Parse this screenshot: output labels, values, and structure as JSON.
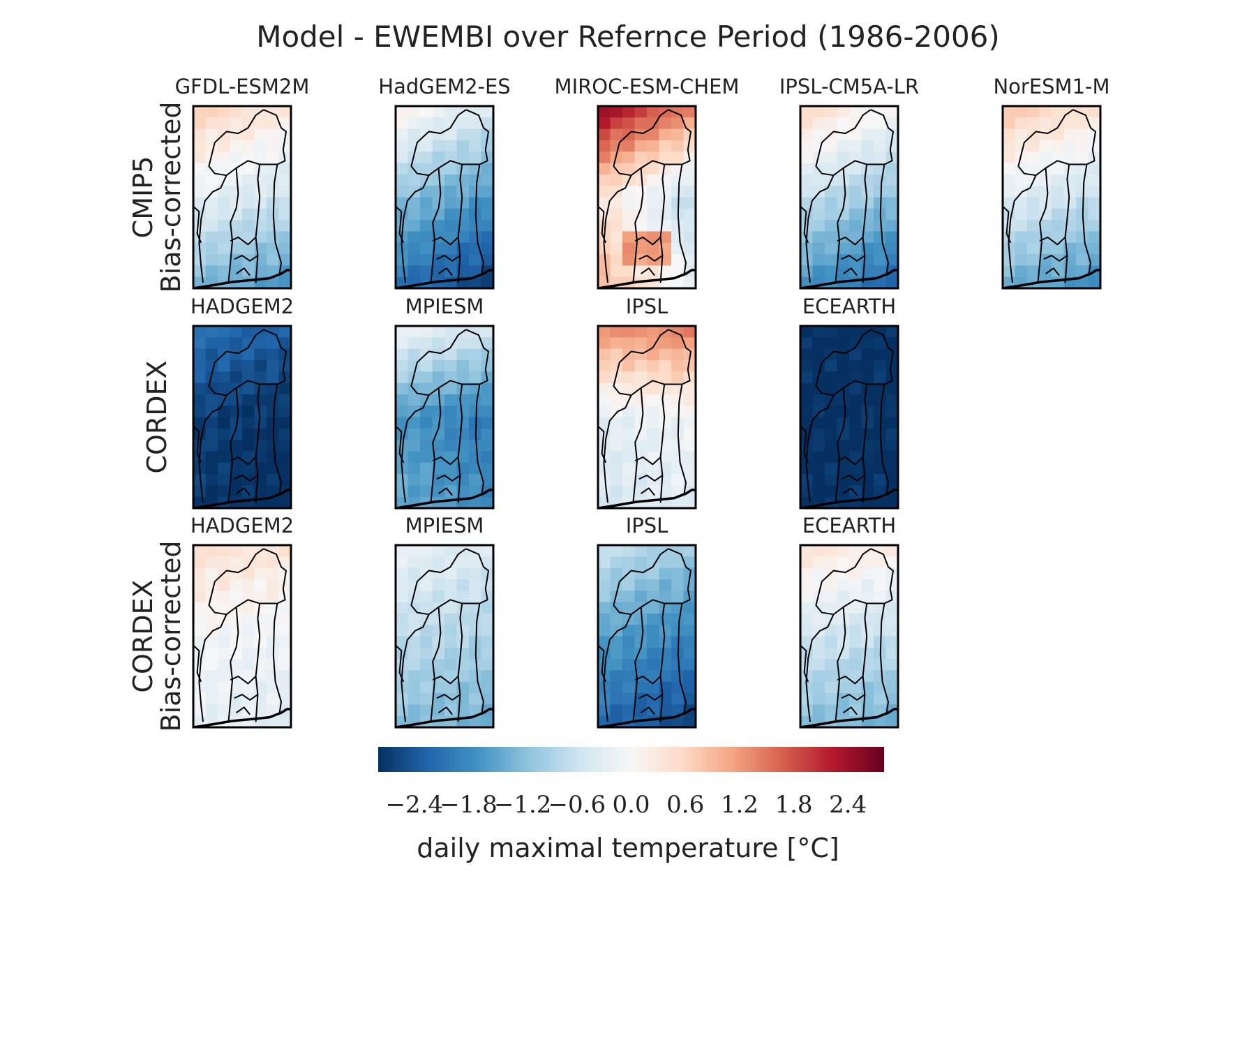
{
  "chart_data": {
    "type": "heatmap",
    "title": "Model - EWEMBI over Refernce Period (1986-2006)",
    "colorbar": {
      "label": "daily maximal temperature [°C]",
      "colormap": "RdBu_r",
      "range": [
        -2.8,
        2.8
      ],
      "ticks": [
        -2.4,
        -1.8,
        -1.2,
        -0.6,
        0.0,
        0.6,
        1.2,
        1.8,
        2.4
      ],
      "tick_labels": [
        "−2.4",
        "−1.8",
        "−1.2",
        "−0.6",
        "0.0",
        "0.6",
        "1.2",
        "1.8",
        "2.4"
      ]
    },
    "rows": [
      {
        "label_lines": [
          "CMIP5",
          "Bias-corrected"
        ],
        "panels": [
          {
            "name": "GFDL-ESM2M",
            "field": {
              "top": 0.5,
              "mid": -0.4,
              "bottom": -1.5,
              "east": -0.2,
              "spot": null
            }
          },
          {
            "name": "HadGEM2-ES",
            "field": {
              "top": -0.1,
              "mid": -1.4,
              "bottom": -2.4,
              "east": -0.3,
              "spot": null
            }
          },
          {
            "name": "MIROC-ESM-CHEM",
            "field": {
              "top": 2.0,
              "mid": -0.2,
              "bottom": 0.4,
              "east": -0.6,
              "spot": 1.2
            }
          },
          {
            "name": "IPSL-CM5A-LR",
            "field": {
              "top": 0.3,
              "mid": -0.9,
              "bottom": -2.0,
              "east": -0.3,
              "spot": null
            }
          },
          {
            "name": "NorESM1-M",
            "field": {
              "top": 0.6,
              "mid": -0.5,
              "bottom": -1.6,
              "east": -0.2,
              "spot": null
            }
          }
        ]
      },
      {
        "label_lines": [
          "CORDEX"
        ],
        "panels": [
          {
            "name": "HADGEM2",
            "field": {
              "top": -2.2,
              "mid": -2.7,
              "bottom": -2.8,
              "east": -0.1,
              "spot": null
            }
          },
          {
            "name": "MPIESM",
            "field": {
              "top": -0.3,
              "mid": -1.8,
              "bottom": -1.6,
              "east": -0.2,
              "spot": null
            }
          },
          {
            "name": "IPSL",
            "field": {
              "top": 1.4,
              "mid": -0.2,
              "bottom": -0.4,
              "east": 0.1,
              "spot": null
            }
          },
          {
            "name": "ECEARTH",
            "field": {
              "top": -2.8,
              "mid": -2.8,
              "bottom": -2.8,
              "east": 0.0,
              "spot": null
            }
          }
        ]
      },
      {
        "label_lines": [
          "CORDEX",
          "Bias-corrected"
        ],
        "panels": [
          {
            "name": "HADGEM2",
            "field": {
              "top": 0.4,
              "mid": -0.1,
              "bottom": -0.3,
              "east": -0.05,
              "spot": null
            }
          },
          {
            "name": "MPIESM",
            "field": {
              "top": -0.3,
              "mid": -0.8,
              "bottom": -1.3,
              "east": -0.1,
              "spot": null
            }
          },
          {
            "name": "IPSL",
            "field": {
              "top": -0.8,
              "mid": -1.7,
              "bottom": -2.4,
              "east": -0.2,
              "spot": null
            }
          },
          {
            "name": "ECEARTH",
            "field": {
              "top": 0.3,
              "mid": -0.6,
              "bottom": -1.3,
              "east": -0.1,
              "spot": null
            }
          }
        ]
      }
    ]
  }
}
